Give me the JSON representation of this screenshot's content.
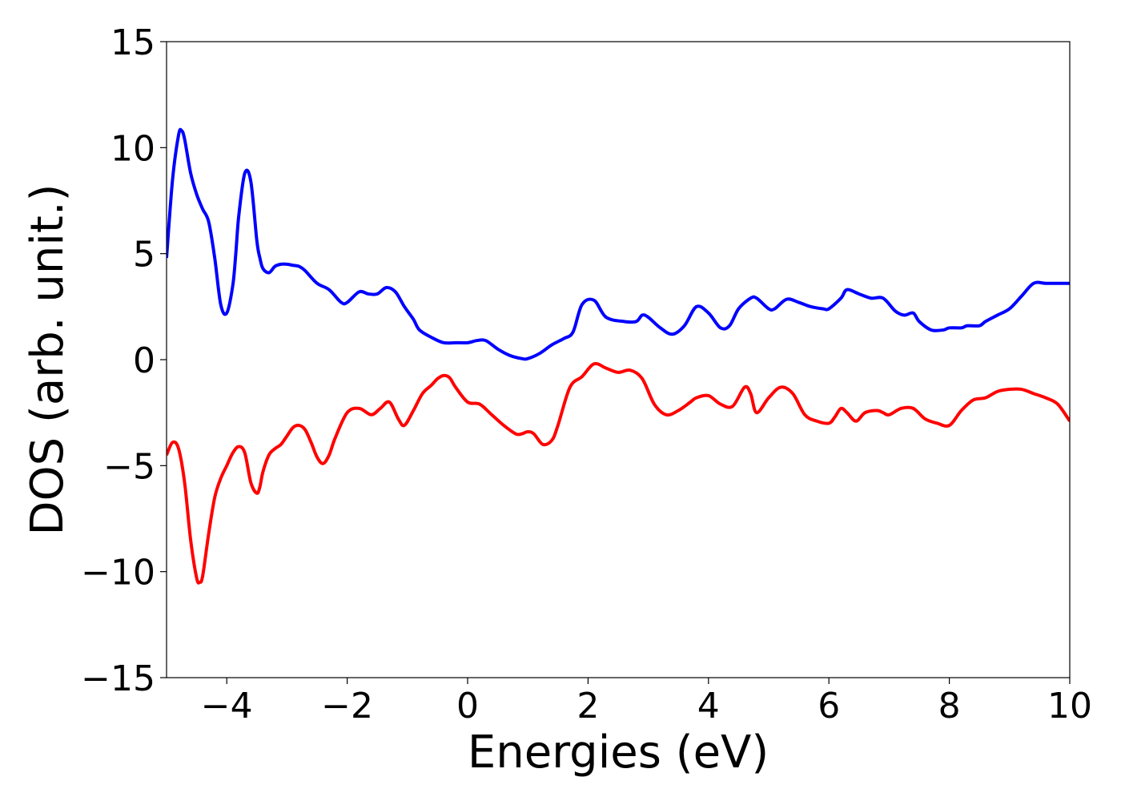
{
  "chart_data": {
    "type": "line",
    "title": "",
    "xlabel": "Energies (eV)",
    "ylabel": "DOS (arb. unit.)",
    "xlim": [
      -5,
      10
    ],
    "ylim": [
      -15,
      15
    ],
    "xticks": [
      -4,
      -2,
      0,
      2,
      4,
      6,
      8,
      10
    ],
    "yticks": [
      -15,
      -10,
      -5,
      0,
      5,
      10,
      15
    ],
    "xtick_labels": [
      "−4",
      "−2",
      "0",
      "2",
      "4",
      "6",
      "8",
      "10"
    ],
    "ytick_labels": [
      "−15",
      "−10",
      "−5",
      "0",
      "5",
      "10",
      "15"
    ],
    "grid": false,
    "legend": "none",
    "series": [
      {
        "color": "#0000ff",
        "x": [
          -5.0,
          -4.9,
          -4.8,
          -4.75,
          -4.7,
          -4.6,
          -4.5,
          -4.4,
          -4.3,
          -4.2,
          -4.1,
          -4.0,
          -3.9,
          -3.85,
          -3.8,
          -3.7,
          -3.6,
          -3.5,
          -3.45,
          -3.4,
          -3.3,
          -3.2,
          -3.1,
          -3.0,
          -2.9,
          -2.8,
          -2.7,
          -2.5,
          -2.3,
          -2.1,
          -2.0,
          -1.8,
          -1.65,
          -1.5,
          -1.35,
          -1.2,
          -1.05,
          -0.9,
          -0.8,
          -0.6,
          -0.4,
          -0.2,
          0.0,
          0.15,
          0.3,
          0.5,
          0.7,
          0.9,
          1.0,
          1.2,
          1.4,
          1.6,
          1.75,
          1.9,
          2.1,
          2.3,
          2.6,
          2.8,
          2.9,
          3.0,
          3.2,
          3.4,
          3.6,
          3.8,
          4.0,
          4.2,
          4.35,
          4.5,
          4.7,
          4.8,
          5.0,
          5.1,
          5.3,
          5.5,
          5.7,
          5.9,
          6.0,
          6.2,
          6.3,
          6.5,
          6.7,
          6.9,
          7.1,
          7.25,
          7.4,
          7.5,
          7.7,
          7.9,
          8.0,
          8.2,
          8.3,
          8.5,
          8.6,
          8.8,
          9.0,
          9.2,
          9.4,
          9.6,
          9.8,
          9.9,
          10.0
        ],
        "y": [
          4.8,
          8.5,
          10.6,
          10.8,
          10.4,
          8.8,
          7.8,
          7.1,
          6.5,
          4.8,
          2.6,
          2.2,
          3.5,
          5.0,
          6.8,
          8.8,
          8.4,
          5.6,
          4.8,
          4.3,
          4.1,
          4.4,
          4.5,
          4.5,
          4.45,
          4.4,
          4.2,
          3.6,
          3.3,
          2.7,
          2.7,
          3.2,
          3.1,
          3.1,
          3.4,
          3.2,
          2.5,
          1.9,
          1.4,
          1.05,
          0.8,
          0.8,
          0.8,
          0.9,
          0.9,
          0.5,
          0.2,
          0.05,
          0.05,
          0.3,
          0.7,
          1.0,
          1.3,
          2.6,
          2.8,
          2.0,
          1.8,
          1.8,
          2.1,
          2.0,
          1.5,
          1.2,
          1.6,
          2.5,
          2.2,
          1.5,
          1.6,
          2.4,
          2.9,
          2.9,
          2.4,
          2.4,
          2.85,
          2.7,
          2.5,
          2.4,
          2.4,
          2.9,
          3.3,
          3.1,
          2.9,
          2.9,
          2.3,
          2.1,
          2.2,
          1.8,
          1.4,
          1.4,
          1.5,
          1.5,
          1.6,
          1.6,
          1.8,
          2.1,
          2.4,
          3.0,
          3.6,
          3.6,
          3.6,
          3.6,
          3.6
        ]
      },
      {
        "color": "#ff0000",
        "x": [
          -5.0,
          -4.9,
          -4.8,
          -4.7,
          -4.6,
          -4.5,
          -4.45,
          -4.4,
          -4.3,
          -4.2,
          -4.1,
          -4.0,
          -3.9,
          -3.8,
          -3.7,
          -3.6,
          -3.5,
          -3.45,
          -3.4,
          -3.3,
          -3.2,
          -3.1,
          -3.0,
          -2.9,
          -2.8,
          -2.7,
          -2.6,
          -2.5,
          -2.4,
          -2.3,
          -2.2,
          -2.0,
          -1.8,
          -1.6,
          -1.45,
          -1.3,
          -1.15,
          -1.05,
          -0.9,
          -0.75,
          -0.6,
          -0.5,
          -0.4,
          -0.3,
          -0.2,
          0.0,
          0.2,
          0.4,
          0.6,
          0.8,
          0.9,
          1.0,
          1.1,
          1.25,
          1.4,
          1.5,
          1.7,
          1.9,
          2.1,
          2.3,
          2.5,
          2.7,
          2.9,
          3.1,
          3.3,
          3.5,
          3.7,
          3.8,
          4.0,
          4.2,
          4.4,
          4.6,
          4.7,
          4.8,
          5.0,
          5.2,
          5.4,
          5.6,
          5.8,
          6.0,
          6.1,
          6.2,
          6.3,
          6.45,
          6.6,
          6.8,
          6.9,
          7.0,
          7.2,
          7.4,
          7.6,
          7.8,
          8.0,
          8.2,
          8.4,
          8.6,
          8.8,
          9.0,
          9.2,
          9.4,
          9.6,
          9.8,
          10.0
        ],
        "y": [
          -4.5,
          -3.9,
          -4.2,
          -5.8,
          -8.5,
          -10.3,
          -10.5,
          -10.2,
          -8.2,
          -6.5,
          -5.6,
          -5.0,
          -4.4,
          -4.1,
          -4.4,
          -5.8,
          -6.3,
          -6.0,
          -5.3,
          -4.5,
          -4.2,
          -4.0,
          -3.6,
          -3.2,
          -3.1,
          -3.3,
          -3.9,
          -4.6,
          -4.9,
          -4.5,
          -3.7,
          -2.5,
          -2.3,
          -2.6,
          -2.3,
          -2.0,
          -2.8,
          -3.1,
          -2.4,
          -1.6,
          -1.2,
          -0.9,
          -0.75,
          -0.85,
          -1.3,
          -2.0,
          -2.1,
          -2.6,
          -3.1,
          -3.5,
          -3.5,
          -3.4,
          -3.5,
          -4.0,
          -3.8,
          -3.1,
          -1.3,
          -0.8,
          -0.2,
          -0.4,
          -0.6,
          -0.5,
          -0.9,
          -2.1,
          -2.6,
          -2.4,
          -2.0,
          -1.8,
          -1.7,
          -2.1,
          -2.2,
          -1.3,
          -1.6,
          -2.5,
          -1.8,
          -1.3,
          -1.6,
          -2.6,
          -2.9,
          -3.0,
          -2.7,
          -2.3,
          -2.5,
          -2.9,
          -2.5,
          -2.4,
          -2.5,
          -2.6,
          -2.3,
          -2.3,
          -2.8,
          -3.0,
          -3.1,
          -2.4,
          -1.9,
          -1.8,
          -1.5,
          -1.4,
          -1.4,
          -1.6,
          -1.8,
          -2.1,
          -2.9
        ]
      }
    ]
  }
}
